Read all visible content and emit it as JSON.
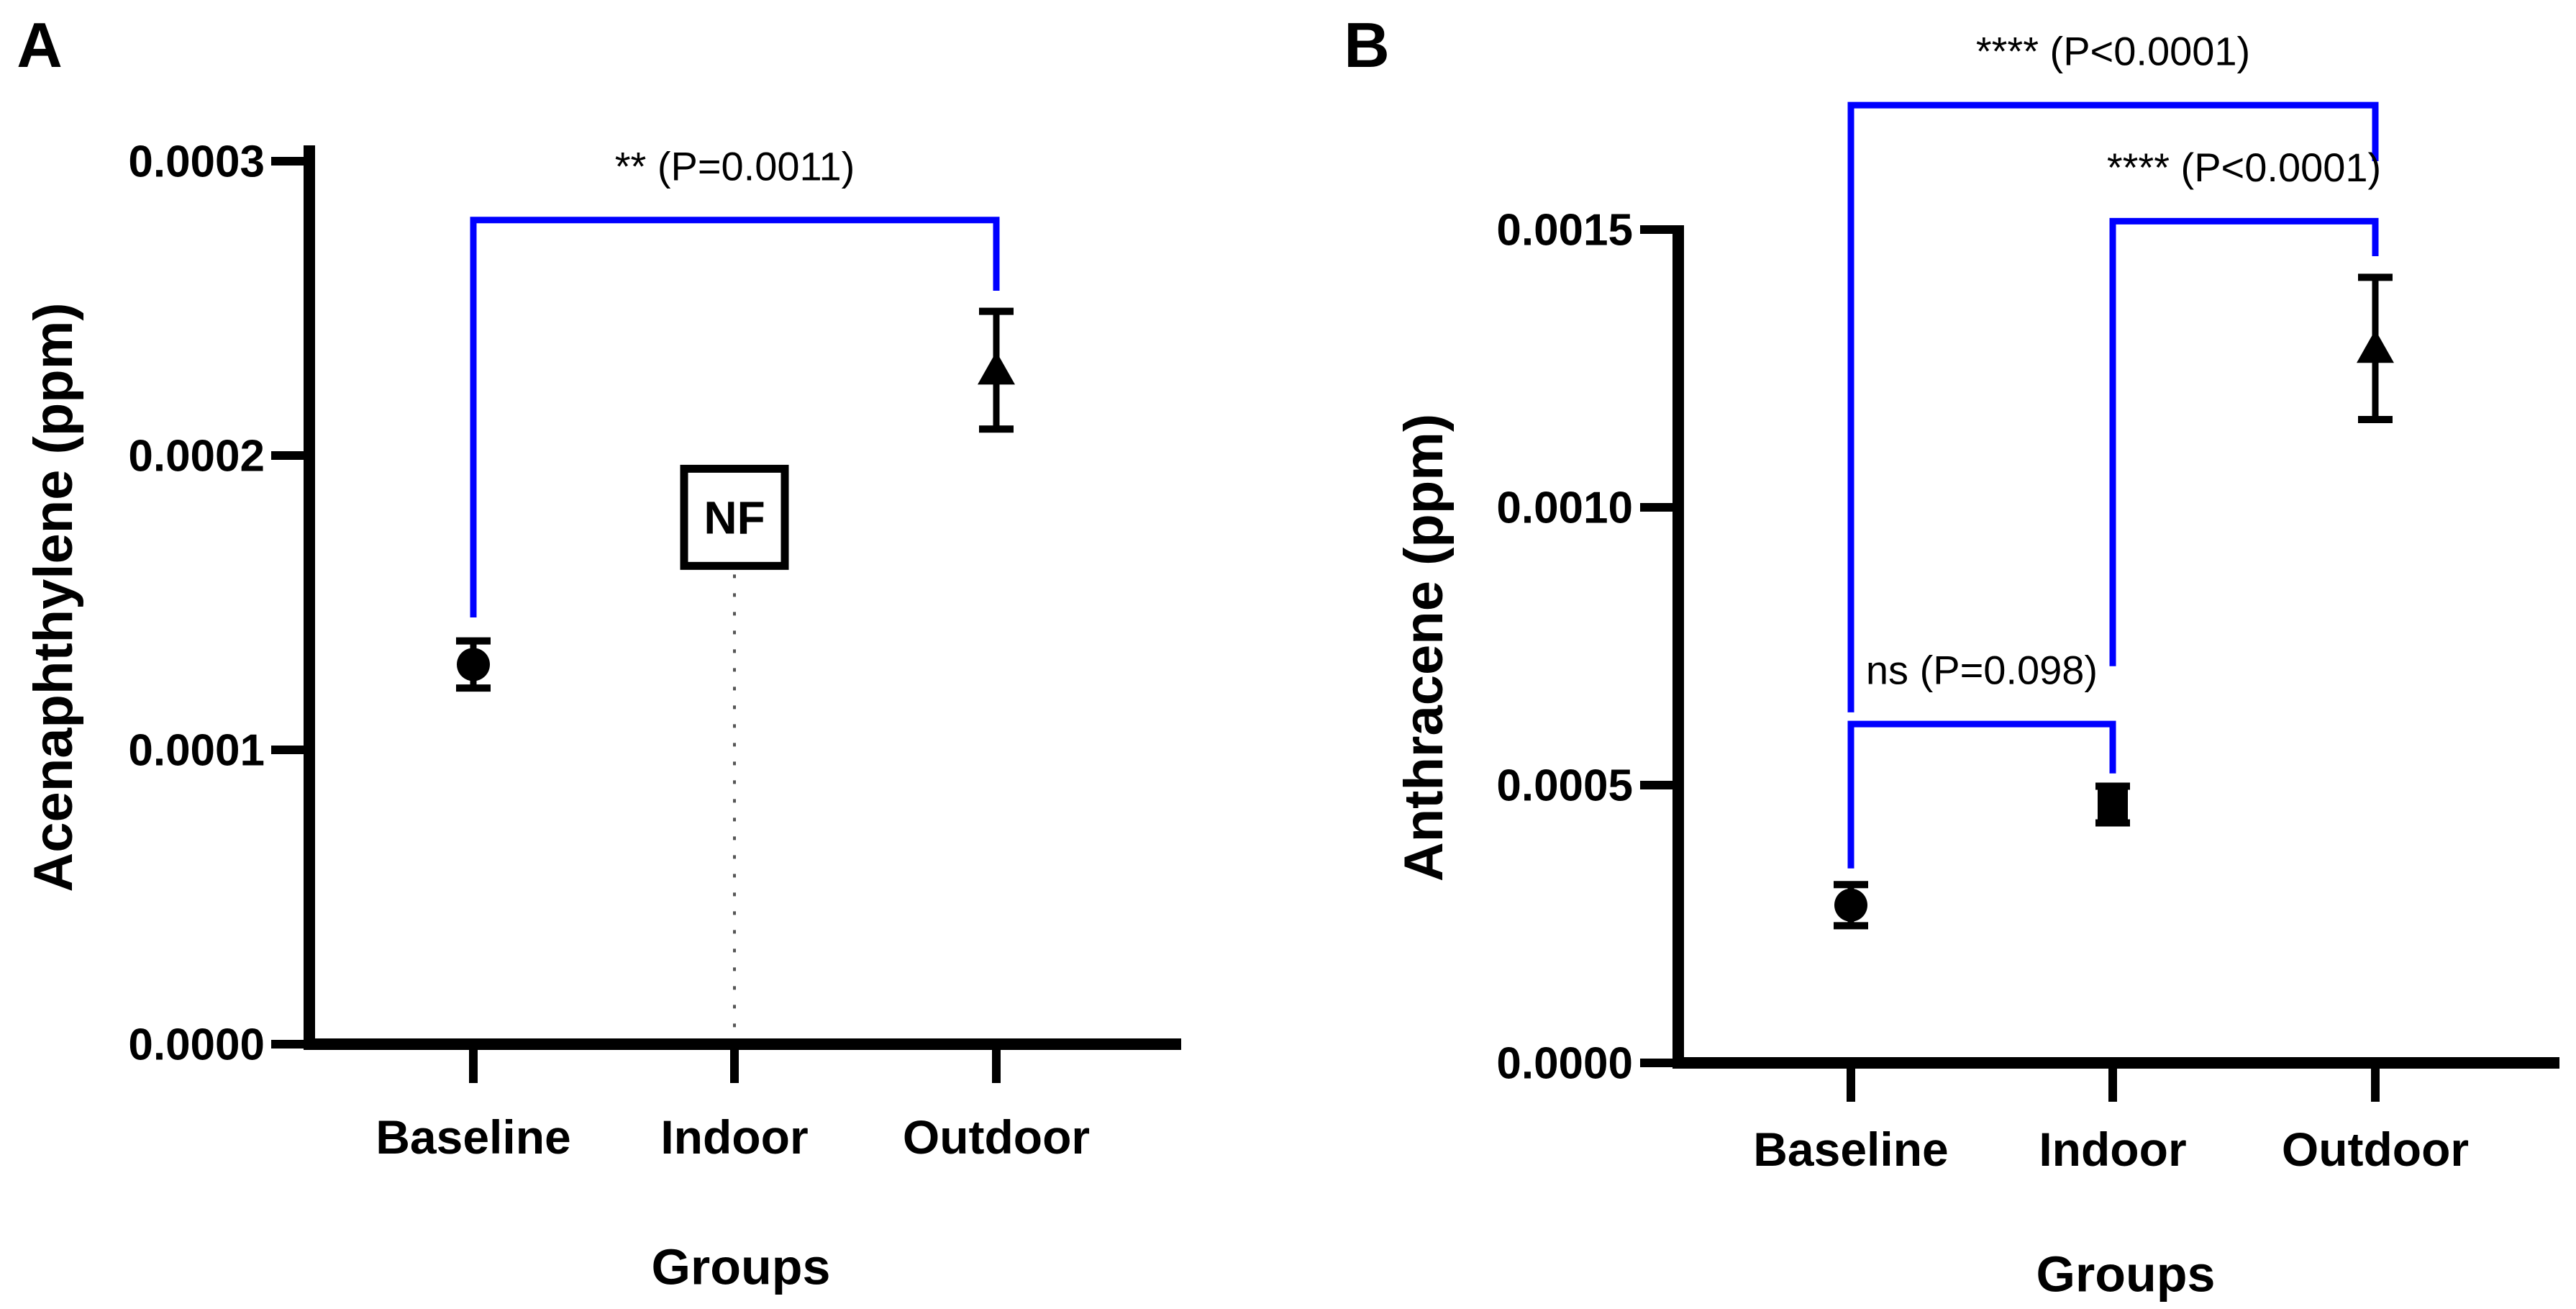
{
  "figure": {
    "background": "#ffffff",
    "panel_letters": [
      "A",
      "B"
    ]
  },
  "colors": {
    "bracket_line": "#0000FF",
    "nf_text": "#FF0000",
    "panel_letter": "#EE8433",
    "axis_and_markers": "#000000",
    "dotted_line": "#555555"
  },
  "chart_data": [
    {
      "type": "scatter",
      "panel_label": "A",
      "xlabel": "Groups",
      "ylabel": "Acenaphthylene (ppm)",
      "categories": [
        "Baseline",
        "Indoor",
        "Outdoor"
      ],
      "y_ticks": [
        {
          "value": 0.0,
          "label": "0.0000"
        },
        {
          "value": 0.0001,
          "label": "0.0001"
        },
        {
          "value": 0.0002,
          "label": "0.0002"
        },
        {
          "value": 0.0003,
          "label": "0.0003"
        }
      ],
      "ylim": [
        0,
        0.000305
      ],
      "grid": false,
      "legend": false,
      "points": [
        {
          "category": "Baseline",
          "marker": "circle",
          "mean": 0.000129,
          "error": 8e-06
        },
        {
          "category": "Indoor",
          "marker": "none",
          "mean": null,
          "error": null,
          "note": "NF"
        },
        {
          "category": "Outdoor",
          "marker": "triangle",
          "mean": 0.000229,
          "error": 2e-05
        }
      ],
      "nf_annotation": {
        "text": "NF",
        "category": "Indoor",
        "center_value": 0.000179,
        "box_half_height_value": 1.65e-05,
        "dotted_line_to_axis": true
      },
      "significance_brackets": [
        {
          "from": "Baseline",
          "to": "Outdoor",
          "label": "** (P=0.0011)",
          "height_value": 0.00028,
          "tail_from_value": 0.000145,
          "tail_to_value": 0.000256
        }
      ]
    },
    {
      "type": "scatter",
      "panel_label": "B",
      "xlabel": "Groups",
      "ylabel": "Anthracene (ppm)",
      "categories": [
        "Baseline",
        "Indoor",
        "Outdoor"
      ],
      "y_ticks": [
        {
          "value": 0.0,
          "label": "0.0000"
        },
        {
          "value": 0.0005,
          "label": "0.0005"
        },
        {
          "value": 0.001,
          "label": "0.0010"
        },
        {
          "value": 0.0015,
          "label": "0.0015"
        }
      ],
      "ylim": [
        0,
        0.001505
      ],
      "grid": false,
      "legend": false,
      "points": [
        {
          "category": "Baseline",
          "marker": "circle",
          "mean": 0.000284,
          "error": 3.7e-05
        },
        {
          "category": "Indoor",
          "marker": "square",
          "mean": 0.000465,
          "error": 3.3e-05
        },
        {
          "category": "Outdoor",
          "marker": "triangle",
          "mean": 0.001286,
          "error": 0.000128
        }
      ],
      "nf_annotation": null,
      "significance_brackets": [
        {
          "from": "Baseline",
          "to": "Outdoor",
          "label": "**** (P<0.0001)",
          "height_value": 0.001724,
          "tail_from_value": 0.000631,
          "tail_to_value": 0.001623
        },
        {
          "from": "Indoor",
          "to": "Outdoor",
          "label": "**** (P<0.0001)",
          "height_value": 0.001515,
          "tail_from_value": 0.000714,
          "tail_to_value": 0.001452
        },
        {
          "from": "Baseline",
          "to": "Indoor",
          "label": "ns (P=0.098)",
          "height_value": 0.00061,
          "tail_from_value": 0.00035,
          "tail_to_value": 0.000521
        }
      ]
    }
  ]
}
